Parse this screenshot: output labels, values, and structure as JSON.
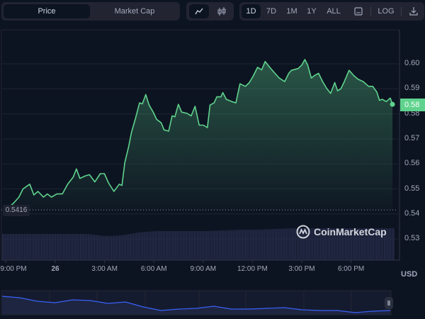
{
  "toolbar": {
    "metric_tabs": [
      "Price",
      "Market Cap"
    ],
    "active_metric": "Price",
    "chart_types": [
      "line-chart-icon",
      "candlestick-icon"
    ],
    "ranges": [
      "1D",
      "7D",
      "1M",
      "1Y",
      "ALL"
    ],
    "active_range": "1D",
    "calendar_icon": "calendar-icon",
    "log_label": "LOG",
    "download_icon": "download-icon"
  },
  "colors": {
    "line": "#5fd38d",
    "current_label": "#5fd38d",
    "volume": "#2a3050",
    "navigator": "#3861fb"
  },
  "watermark": "CoinMarketCap",
  "currency": "USD",
  "chart_data": {
    "type": "area",
    "title": "",
    "xlabel": "",
    "ylabel": "USD",
    "x_unit": "hours since 9:00 PM",
    "x_ticks": [
      {
        "h": 0,
        "label": "9:00 PM"
      },
      {
        "h": 3,
        "label": "26"
      },
      {
        "h": 6,
        "label": "3:00 AM"
      },
      {
        "h": 9,
        "label": "6:00 AM"
      },
      {
        "h": 12,
        "label": "9:00 AM"
      },
      {
        "h": 15,
        "label": "12:00 PM"
      },
      {
        "h": 18,
        "label": "3:00 PM"
      },
      {
        "h": 21,
        "label": "6:00 PM"
      }
    ],
    "y_ticks": [
      "0.60",
      "0.59",
      "0.58",
      "0.57",
      "0.56",
      "0.55",
      "0.54",
      "0.53"
    ],
    "ylim": [
      0.525,
      0.613
    ],
    "reference_line": {
      "value": 0.5416,
      "label": "0.5416"
    },
    "current_price": {
      "value": 0.5835,
      "label": "0.58"
    },
    "grid": true,
    "series": [
      {
        "name": "Price",
        "x": [
          0,
          0.46,
          0.79,
          1.04,
          1.45,
          1.7,
          1.95,
          2.28,
          2.52,
          2.77,
          3.1,
          3.43,
          3.76,
          4.09,
          4.29,
          4.5,
          4.83,
          5.08,
          5.41,
          5.74,
          5.99,
          6.24,
          6.57,
          6.9,
          7.06,
          7.23,
          7.47,
          7.64,
          7.89,
          8.13,
          8.3,
          8.51,
          8.71,
          8.96,
          9.17,
          9.45,
          9.62,
          9.9,
          10.11,
          10.28,
          10.49,
          10.69,
          11.02,
          11.27,
          11.51,
          11.76,
          12.01,
          12.26,
          12.42,
          12.67,
          12.83,
          13.08,
          13.2,
          13.41,
          13.74,
          13.99,
          14.24,
          14.57,
          14.81,
          15.06,
          15.31,
          15.56,
          15.77,
          16.05,
          16.3,
          16.63,
          16.96,
          17.21,
          17.37,
          17.78,
          18.0,
          18.19,
          18.36,
          18.58,
          18.77,
          19.02,
          19.27,
          19.52,
          19.76,
          20.01,
          20.18,
          20.39,
          20.59,
          20.88,
          21.17,
          21.41,
          21.74,
          22.07,
          22.32,
          22.57,
          22.73,
          22.9,
          23.14,
          23.39,
          23.52
        ],
        "y": [
          0.5416,
          0.5443,
          0.5467,
          0.55,
          0.5519,
          0.5476,
          0.549,
          0.5467,
          0.548,
          0.5467,
          0.548,
          0.548,
          0.5519,
          0.5547,
          0.558,
          0.5542,
          0.5552,
          0.5557,
          0.5528,
          0.5561,
          0.5561,
          0.5524,
          0.549,
          0.5519,
          0.5514,
          0.5604,
          0.567,
          0.5726,
          0.5783,
          0.5844,
          0.584,
          0.5877,
          0.5835,
          0.5807,
          0.5778,
          0.5764,
          0.5736,
          0.5731,
          0.5792,
          0.5788,
          0.5838,
          0.5807,
          0.5802,
          0.5792,
          0.583,
          0.5755,
          0.5755,
          0.5745,
          0.5835,
          0.5844,
          0.5868,
          0.5868,
          0.5885,
          0.5858,
          0.5849,
          0.5844,
          0.592,
          0.591,
          0.5925,
          0.5953,
          0.5986,
          0.5976,
          0.6009,
          0.5986,
          0.5967,
          0.5943,
          0.5929,
          0.5962,
          0.5974,
          0.5981,
          0.5995,
          0.6017,
          0.5995,
          0.5943,
          0.5953,
          0.5962,
          0.5929,
          0.5901,
          0.5882,
          0.5925,
          0.5892,
          0.5901,
          0.5929,
          0.5974,
          0.5953,
          0.5939,
          0.5929,
          0.591,
          0.591,
          0.5887,
          0.5854,
          0.5858,
          0.5849,
          0.5863,
          0.5838
        ]
      }
    ],
    "volume_relative": [
      37,
      37,
      37,
      37,
      37,
      37,
      34,
      35,
      39,
      41,
      41,
      41,
      41,
      42,
      43,
      43,
      44,
      45,
      45,
      45,
      45,
      45,
      45,
      45
    ],
    "navigator_relative": [
      27,
      25,
      20,
      18,
      22,
      21,
      17,
      19,
      12,
      7,
      9,
      10,
      13,
      9,
      9,
      10,
      11,
      8,
      7,
      7,
      4,
      6,
      7
    ]
  }
}
